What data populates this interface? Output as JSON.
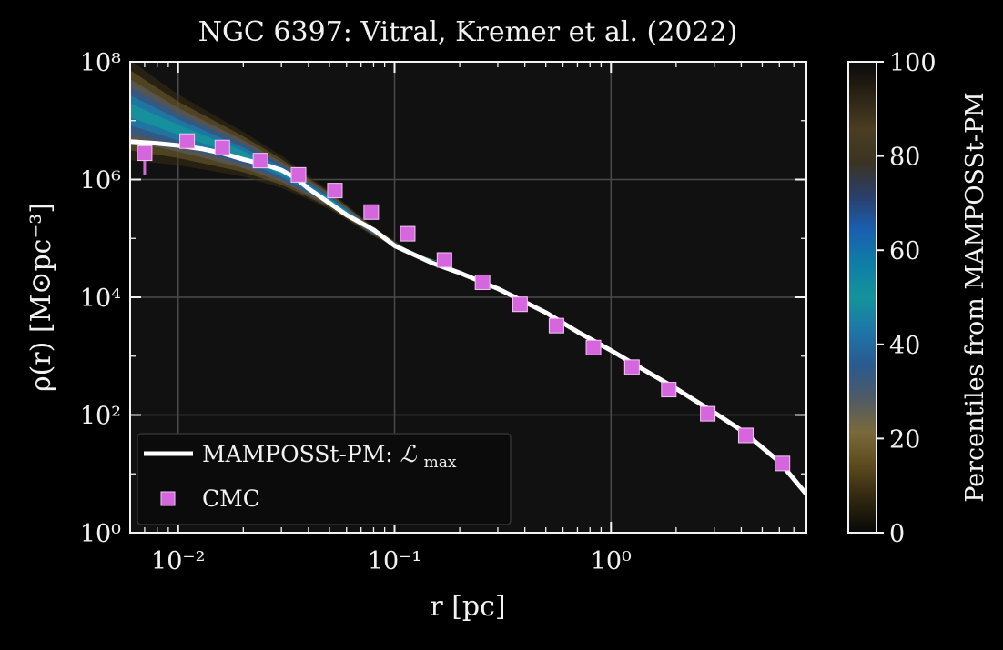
{
  "chart_data": {
    "type": "line",
    "title": "NGC 6397: Vitral, Kremer et al. (2022)",
    "xlabel": "r  [pc]",
    "ylabel": "ρ(r)  [M⊙pc⁻³]",
    "xscale": "log",
    "yscale": "log",
    "xlim": [
      0.006,
      8.0
    ],
    "ylim": [
      1,
      100000000
    ],
    "x_ticks": [
      {
        "value": 0.01,
        "label": "10⁻²"
      },
      {
        "value": 0.1,
        "label": "10⁻¹"
      },
      {
        "value": 1,
        "label": "10⁰"
      }
    ],
    "y_ticks": [
      {
        "value": 1,
        "label": "10⁰"
      },
      {
        "value": 100,
        "label": "10²"
      },
      {
        "value": 10000,
        "label": "10⁴"
      },
      {
        "value": 1000000,
        "label": "10⁶"
      },
      {
        "value": 100000000,
        "label": "10⁸"
      }
    ],
    "grid": true,
    "legend_position": "bottom-left",
    "series": [
      {
        "name": "MAMPOSSt-PM: ℒmax",
        "kind": "line",
        "color": "#ffffff",
        "points": [
          [
            0.006,
            4400000
          ],
          [
            0.008,
            4100000
          ],
          [
            0.01,
            3800000
          ],
          [
            0.013,
            3300000
          ],
          [
            0.016,
            2800000
          ],
          [
            0.02,
            2200000
          ],
          [
            0.025,
            1800000
          ],
          [
            0.03,
            1450000
          ],
          [
            0.035,
            1050000
          ],
          [
            0.04,
            700000
          ],
          [
            0.05,
            400000
          ],
          [
            0.06,
            250000
          ],
          [
            0.08,
            140000
          ],
          [
            0.1,
            75000
          ],
          [
            0.15,
            38000
          ],
          [
            0.2,
            26000
          ],
          [
            0.3,
            14000
          ],
          [
            0.5,
            5500
          ],
          [
            0.7,
            2600
          ],
          [
            1.0,
            1250
          ],
          [
            1.5,
            520
          ],
          [
            2.0,
            280
          ],
          [
            3.0,
            110
          ],
          [
            4.0,
            55
          ],
          [
            5.0,
            28
          ],
          [
            6.0,
            16
          ],
          [
            8.0,
            4.5
          ]
        ]
      },
      {
        "name": "CMC",
        "kind": "scatter",
        "marker": "square",
        "color": "#d566dd",
        "points": [
          [
            0.007,
            2800000
          ],
          [
            0.011,
            4500000
          ],
          [
            0.016,
            3500000
          ],
          [
            0.024,
            2100000
          ],
          [
            0.036,
            1200000
          ],
          [
            0.053,
            650000
          ],
          [
            0.078,
            280000
          ],
          [
            0.115,
            120000
          ],
          [
            0.17,
            43000
          ],
          [
            0.255,
            18000
          ],
          [
            0.38,
            7600
          ],
          [
            0.56,
            3300
          ],
          [
            0.83,
            1400
          ],
          [
            1.25,
            650
          ],
          [
            1.85,
            270
          ],
          [
            2.8,
            105
          ],
          [
            4.2,
            45
          ],
          [
            6.2,
            15
          ]
        ],
        "errorbar_first_lower": 1200000
      },
      {
        "name": "Percentiles from MAMPOSSt-PM",
        "kind": "percentile-band",
        "center": [
          [
            0.006,
            15000000
          ],
          [
            0.01,
            7000000
          ],
          [
            0.02,
            2700000
          ],
          [
            0.03,
            1350000
          ],
          [
            0.05,
            450000
          ],
          [
            0.08,
            130000
          ],
          [
            0.12,
            55000
          ],
          [
            0.17,
            38000
          ]
        ],
        "spread_dex_at_x": [
          [
            0.006,
            0.85
          ],
          [
            0.01,
            0.6
          ],
          [
            0.02,
            0.38
          ],
          [
            0.04,
            0.2
          ],
          [
            0.08,
            0.08
          ],
          [
            0.12,
            0.03
          ],
          [
            0.17,
            0.0
          ]
        ]
      }
    ],
    "colorbar": {
      "label": "Percentiles from MAMPOSSt-PM",
      "range": [
        0,
        100
      ],
      "ticks": [
        0,
        20,
        40,
        60,
        80,
        100
      ],
      "colors": [
        "#080808",
        "#2f2610",
        "#5c4a1e",
        "#7a6a3a",
        "#4e5a66",
        "#2a5a90",
        "#1f76a8",
        "#14939b",
        "#0e7ea6",
        "#1a5fb0",
        "#2a3f6a",
        "#3b3322",
        "#4a3d22",
        "#2a2214",
        "#0a0a0a"
      ]
    },
    "legend": [
      {
        "label": "MAMPOSSt-PM:",
        "label_math": "ℒ",
        "label_sub": "max",
        "symbol": "line"
      },
      {
        "label": "CMC",
        "symbol": "square"
      }
    ],
    "plot_background": "#111111",
    "page_background": "#000000"
  }
}
